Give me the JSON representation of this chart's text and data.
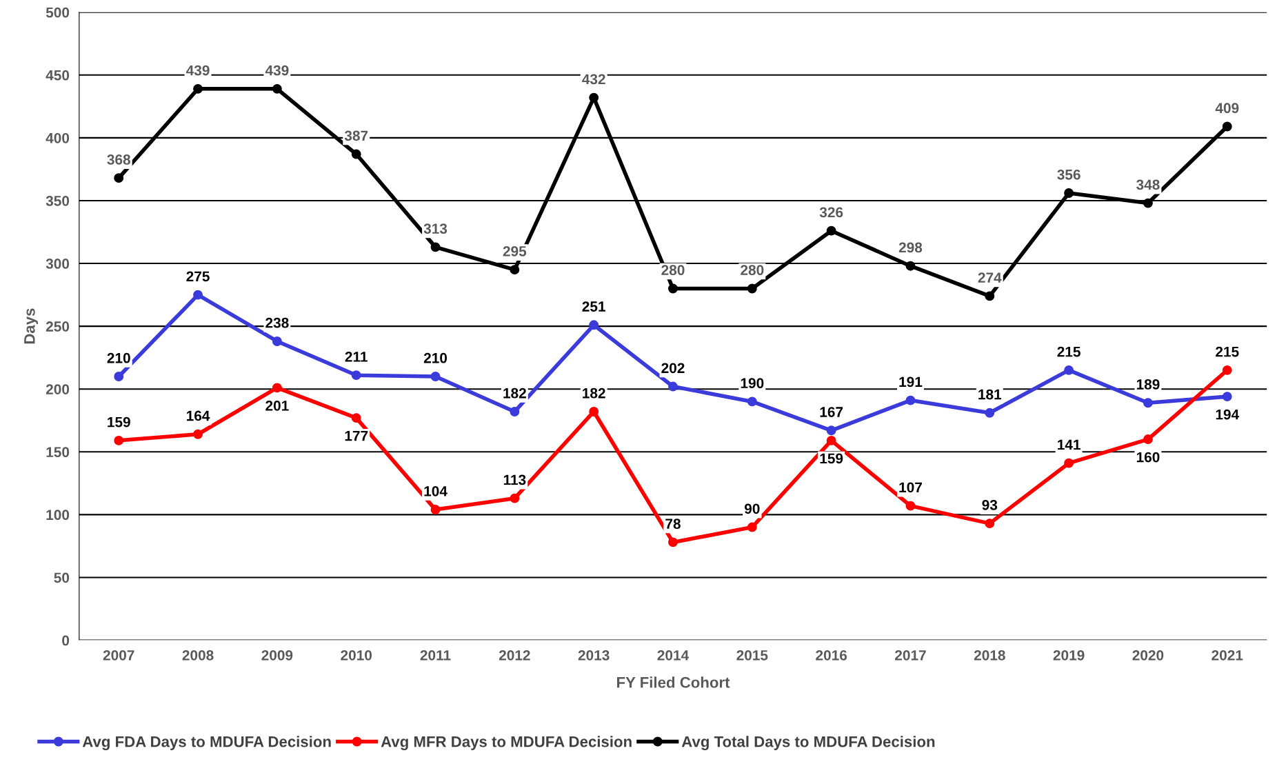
{
  "chart_data": {
    "type": "line",
    "xlabel": "FY Filed Cohort",
    "ylabel": "Days",
    "categories": [
      "2007",
      "2008",
      "2009",
      "2010",
      "2011",
      "2012",
      "2013",
      "2014",
      "2015",
      "2016",
      "2017",
      "2018",
      "2019",
      "2020",
      "2021"
    ],
    "series": [
      {
        "name": "Avg FDA Days to MDUFA Decision",
        "color": "#3b3bdb",
        "values": [
          210,
          275,
          238,
          211,
          210,
          182,
          251,
          202,
          190,
          167,
          191,
          181,
          215,
          189,
          194
        ]
      },
      {
        "name": "Avg MFR Days to MDUFA Decision",
        "color": "#ff0000",
        "values": [
          159,
          164,
          201,
          177,
          104,
          113,
          182,
          78,
          90,
          159,
          107,
          93,
          141,
          160,
          215
        ]
      },
      {
        "name": "Avg Total Days to MDUFA Decision",
        "color": "#000000",
        "values": [
          368,
          439,
          439,
          387,
          313,
          295,
          432,
          280,
          280,
          326,
          298,
          274,
          356,
          348,
          409
        ]
      }
    ],
    "ylim": [
      0,
      500
    ],
    "yticks": [
      0,
      50,
      100,
      150,
      200,
      250,
      300,
      350,
      400,
      450,
      500
    ],
    "grid": "y",
    "legend": "bottom",
    "marker": "circle",
    "line_style": "solid",
    "data_labels": true
  }
}
